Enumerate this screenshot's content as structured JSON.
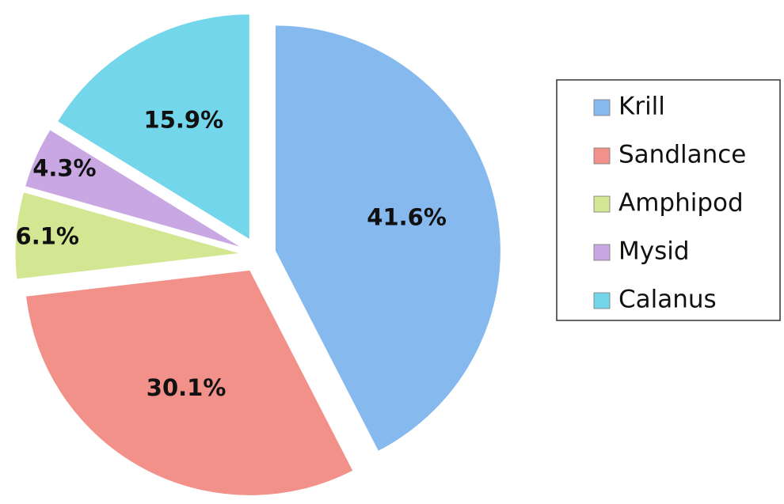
{
  "chart_data": {
    "type": "pie",
    "categories": [
      "Krill",
      "Sandlance",
      "Amphipod",
      "Mysid",
      "Calanus"
    ],
    "values": [
      41.6,
      30.1,
      6.1,
      4.3,
      15.9
    ],
    "value_labels": [
      "41.6%",
      "30.1%",
      "6.1%",
      "4.3%",
      "15.9%"
    ],
    "colors": [
      "#86b9ee",
      "#f2918a",
      "#d3e691",
      "#c8a7e2",
      "#74d6ea"
    ],
    "legend": "right"
  }
}
